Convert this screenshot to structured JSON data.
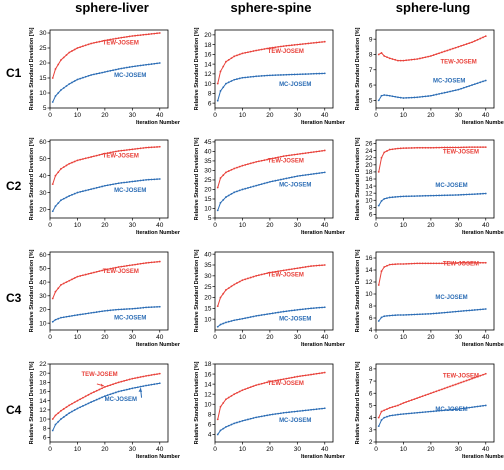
{
  "column_titles": [
    "sphere-liver",
    "sphere-spine",
    "sphere-lung"
  ],
  "row_labels": [
    "C1",
    "C2",
    "C3",
    "C4"
  ],
  "colors": {
    "tew": "#e8413a",
    "mc": "#2c6db5"
  },
  "chart_data": [
    {
      "type": "line",
      "row": "C1",
      "column": "sphere-liver",
      "xlabel": "Iteration Number",
      "ylabel": "Relative Standard Deviation [%]",
      "xlim": [
        0,
        43
      ],
      "ylim": [
        5,
        31
      ],
      "xticks": [
        0,
        10,
        20,
        30,
        40
      ],
      "yticks": [
        5,
        10,
        15,
        20,
        25,
        30
      ],
      "series": [
        {
          "name": "TEW-JOSEM",
          "x": [
            1,
            2,
            4,
            7,
            10,
            15,
            20,
            25,
            30,
            35,
            40
          ],
          "y": [
            15,
            18,
            21,
            23.5,
            25,
            26.5,
            27.5,
            28.3,
            29,
            29.5,
            30
          ]
        },
        {
          "name": "MC-JOSEM",
          "x": [
            1,
            2,
            4,
            7,
            10,
            15,
            20,
            25,
            30,
            35,
            40
          ],
          "y": [
            7,
            9,
            11,
            13,
            14.5,
            16,
            17,
            18,
            18.8,
            19.4,
            20
          ]
        }
      ]
    },
    {
      "type": "line",
      "row": "C1",
      "column": "sphere-spine",
      "xlabel": "Iteration Number",
      "ylabel": "Relative Standard Deviation [%]",
      "xlim": [
        0,
        43
      ],
      "ylim": [
        5,
        21
      ],
      "xticks": [
        0,
        10,
        20,
        30,
        40
      ],
      "yticks": [
        6,
        8,
        10,
        12,
        14,
        16,
        18,
        20
      ],
      "series": [
        {
          "name": "TEW-JOSEM",
          "x": [
            1,
            2,
            4,
            7,
            10,
            15,
            20,
            25,
            30,
            35,
            40
          ],
          "y": [
            10,
            12.5,
            14.5,
            15.6,
            16.2,
            16.8,
            17.3,
            17.7,
            18,
            18.3,
            18.6
          ]
        },
        {
          "name": "MC-JOSEM",
          "x": [
            1,
            2,
            4,
            7,
            10,
            15,
            20,
            25,
            30,
            35,
            40
          ],
          "y": [
            6.5,
            8.5,
            10,
            10.8,
            11.2,
            11.5,
            11.7,
            11.8,
            11.9,
            12,
            12.1
          ]
        }
      ]
    },
    {
      "type": "line",
      "row": "C1",
      "column": "sphere-lung",
      "xlabel": "Iteration Number",
      "ylabel": "Relative Standard Deviation [%]",
      "xlim": [
        0,
        43
      ],
      "ylim": [
        4.5,
        9.6
      ],
      "xticks": [
        0,
        10,
        20,
        30,
        40
      ],
      "yticks": [
        5,
        6,
        7,
        8,
        9
      ],
      "series": [
        {
          "name": "TEW-JOSEM",
          "x": [
            1,
            2,
            3,
            5,
            8,
            10,
            15,
            20,
            25,
            30,
            35,
            40
          ],
          "y": [
            8,
            8.1,
            7.9,
            7.75,
            7.6,
            7.6,
            7.7,
            7.9,
            8.2,
            8.5,
            8.8,
            9.2
          ]
        },
        {
          "name": "MC-JOSEM",
          "x": [
            1,
            2,
            3,
            5,
            8,
            10,
            15,
            20,
            25,
            30,
            35,
            40
          ],
          "y": [
            5,
            5.3,
            5.35,
            5.3,
            5.2,
            5.15,
            5.2,
            5.3,
            5.5,
            5.7,
            6,
            6.3
          ]
        }
      ]
    },
    {
      "type": "line",
      "row": "C2",
      "column": "sphere-liver",
      "xlabel": "Iteration Number",
      "ylabel": "Relative Standard Deviation [%]",
      "xlim": [
        0,
        43
      ],
      "ylim": [
        15,
        61
      ],
      "xticks": [
        0,
        10,
        20,
        30,
        40
      ],
      "yticks": [
        20,
        30,
        40,
        50,
        60
      ],
      "series": [
        {
          "name": "TEW-JOSEM",
          "x": [
            1,
            2,
            4,
            7,
            10,
            15,
            20,
            25,
            30,
            35,
            40
          ],
          "y": [
            35,
            40,
            44,
            47,
            49,
            51,
            53,
            54.5,
            55.5,
            56.5,
            57
          ]
        },
        {
          "name": "MC-JOSEM",
          "x": [
            1,
            2,
            4,
            7,
            10,
            15,
            20,
            25,
            30,
            35,
            40
          ],
          "y": [
            19,
            22,
            25.5,
            28,
            30,
            32,
            34,
            35.5,
            36.5,
            37.5,
            38
          ]
        }
      ]
    },
    {
      "type": "line",
      "row": "C2",
      "column": "sphere-spine",
      "xlabel": "Iteration Number",
      "ylabel": "Relative Standard Deviation [%]",
      "xlim": [
        0,
        43
      ],
      "ylim": [
        5,
        46
      ],
      "xticks": [
        0,
        10,
        20,
        30,
        40
      ],
      "yticks": [
        5,
        10,
        15,
        20,
        25,
        30,
        35,
        40,
        45
      ],
      "series": [
        {
          "name": "TEW-JOSEM",
          "x": [
            1,
            2,
            4,
            7,
            10,
            15,
            20,
            25,
            30,
            35,
            40
          ],
          "y": [
            21,
            26,
            29,
            31,
            32.5,
            34.5,
            36,
            37.5,
            38.5,
            39.5,
            40.5
          ]
        },
        {
          "name": "MC-JOSEM",
          "x": [
            1,
            2,
            4,
            7,
            10,
            15,
            20,
            25,
            30,
            35,
            40
          ],
          "y": [
            9,
            13,
            16,
            18.5,
            20,
            22,
            24,
            25.5,
            27,
            28,
            29
          ]
        }
      ]
    },
    {
      "type": "line",
      "row": "C2",
      "column": "sphere-lung",
      "xlabel": "Iteration Number",
      "ylabel": "Relative Standard Deviation [%]",
      "xlim": [
        0,
        43
      ],
      "ylim": [
        5,
        27
      ],
      "xticks": [
        0,
        10,
        20,
        30,
        40
      ],
      "yticks": [
        6,
        8,
        10,
        12,
        14,
        16,
        18,
        20,
        22,
        24,
        26
      ],
      "series": [
        {
          "name": "TEW-JOSEM",
          "x": [
            1,
            2,
            3,
            5,
            8,
            10,
            15,
            20,
            25,
            30,
            35,
            40
          ],
          "y": [
            18,
            22,
            23.5,
            24.3,
            24.6,
            24.7,
            24.8,
            24.8,
            24.9,
            24.9,
            25,
            25
          ]
        },
        {
          "name": "MC-JOSEM",
          "x": [
            1,
            2,
            3,
            5,
            8,
            10,
            15,
            20,
            25,
            30,
            35,
            40
          ],
          "y": [
            8.5,
            9.8,
            10.4,
            10.8,
            11,
            11.1,
            11.2,
            11.3,
            11.4,
            11.5,
            11.7,
            11.9
          ]
        }
      ]
    },
    {
      "type": "line",
      "row": "C3",
      "column": "sphere-liver",
      "xlabel": "Iteration Number",
      "ylabel": "Relative Standard Deviation [%]",
      "xlim": [
        0,
        43
      ],
      "ylim": [
        5,
        62
      ],
      "xticks": [
        0,
        10,
        20,
        30,
        40
      ],
      "yticks": [
        10,
        20,
        30,
        40,
        50,
        60
      ],
      "series": [
        {
          "name": "TEW-JOSEM",
          "x": [
            1,
            2,
            4,
            7,
            10,
            15,
            20,
            25,
            30,
            35,
            40
          ],
          "y": [
            28,
            33,
            38,
            41,
            44,
            46.5,
            49,
            51,
            52.5,
            54,
            55
          ]
        },
        {
          "name": "MC-JOSEM",
          "x": [
            1,
            2,
            4,
            7,
            10,
            15,
            20,
            25,
            30,
            35,
            40
          ],
          "y": [
            11,
            12.5,
            14,
            15,
            16,
            17.5,
            19,
            20,
            20.5,
            21.5,
            22
          ]
        }
      ]
    },
    {
      "type": "line",
      "row": "C3",
      "column": "sphere-spine",
      "xlabel": "Iteration Number",
      "ylabel": "Relative Standard Deviation [%]",
      "xlim": [
        0,
        43
      ],
      "ylim": [
        5,
        41
      ],
      "xticks": [
        0,
        10,
        20,
        30,
        40
      ],
      "yticks": [
        10,
        15,
        20,
        25,
        30,
        35,
        40
      ],
      "series": [
        {
          "name": "TEW-JOSEM",
          "x": [
            1,
            2,
            4,
            7,
            10,
            15,
            20,
            25,
            30,
            35,
            40
          ],
          "y": [
            16,
            20,
            23.5,
            26,
            28,
            30,
            31.5,
            32.5,
            33.5,
            34.5,
            35
          ]
        },
        {
          "name": "MC-JOSEM",
          "x": [
            1,
            2,
            4,
            7,
            10,
            15,
            20,
            25,
            30,
            35,
            40
          ],
          "y": [
            6.5,
            7.5,
            8.5,
            9.5,
            10.2,
            11.5,
            12.5,
            13.5,
            14.3,
            15,
            15.5
          ]
        }
      ]
    },
    {
      "type": "line",
      "row": "C3",
      "column": "sphere-lung",
      "xlabel": "Iteration Number",
      "ylabel": "Relative Standard Deviation [%]",
      "xlim": [
        0,
        43
      ],
      "ylim": [
        4,
        17
      ],
      "xticks": [
        0,
        10,
        20,
        30,
        40
      ],
      "yticks": [
        4,
        6,
        8,
        10,
        12,
        14,
        16
      ],
      "series": [
        {
          "name": "TEW-JOSEM",
          "x": [
            1,
            2,
            3,
            5,
            8,
            10,
            15,
            20,
            25,
            30,
            35,
            40
          ],
          "y": [
            11.5,
            13.8,
            14.5,
            14.9,
            15,
            15,
            15.1,
            15.1,
            15.1,
            15.2,
            15.2,
            15.2
          ]
        },
        {
          "name": "MC-JOSEM",
          "x": [
            1,
            2,
            3,
            5,
            8,
            10,
            15,
            20,
            25,
            30,
            35,
            40
          ],
          "y": [
            5.5,
            6.1,
            6.3,
            6.4,
            6.5,
            6.5,
            6.6,
            6.7,
            6.9,
            7.1,
            7.3,
            7.5
          ]
        }
      ]
    },
    {
      "type": "line",
      "row": "C4",
      "column": "sphere-liver",
      "xlabel": "Iteration Number",
      "ylabel": "Relative Standard Deviation [%]",
      "xlim": [
        0,
        43
      ],
      "ylim": [
        5,
        22
      ],
      "xticks": [
        0,
        10,
        20,
        30,
        40
      ],
      "yticks": [
        6,
        8,
        10,
        12,
        14,
        16,
        18,
        20,
        22
      ],
      "series": [
        {
          "name": "TEW-JOSEM",
          "x": [
            1,
            2,
            4,
            7,
            10,
            15,
            20,
            25,
            30,
            35,
            40
          ],
          "y": [
            10,
            10.8,
            11.8,
            13,
            14,
            15.6,
            17,
            18,
            18.8,
            19.4,
            19.9
          ]
        },
        {
          "name": "MC-JOSEM",
          "x": [
            1,
            2,
            4,
            7,
            10,
            15,
            20,
            25,
            30,
            35,
            40
          ],
          "y": [
            7.5,
            8.8,
            10,
            11.3,
            12.3,
            13.7,
            15,
            16,
            16.7,
            17.3,
            17.8
          ]
        }
      ]
    },
    {
      "type": "line",
      "row": "C4",
      "column": "sphere-spine",
      "xlabel": "Iteration Number",
      "ylabel": "Relative Standard Deviation [%]",
      "xlim": [
        0,
        43
      ],
      "ylim": [
        2.5,
        18
      ],
      "xticks": [
        0,
        10,
        20,
        30,
        40
      ],
      "yticks": [
        4,
        6,
        8,
        10,
        12,
        14,
        16,
        18
      ],
      "series": [
        {
          "name": "TEW-JOSEM",
          "x": [
            1,
            2,
            4,
            7,
            10,
            15,
            20,
            25,
            30,
            35,
            40
          ],
          "y": [
            7,
            9.5,
            11,
            12,
            12.8,
            13.8,
            14.5,
            15,
            15.5,
            15.9,
            16.3
          ]
        },
        {
          "name": "MC-JOSEM",
          "x": [
            1,
            2,
            4,
            7,
            10,
            15,
            20,
            25,
            30,
            35,
            40
          ],
          "y": [
            4,
            4.8,
            5.5,
            6.2,
            6.7,
            7.4,
            7.9,
            8.3,
            8.6,
            8.9,
            9.2
          ]
        }
      ]
    },
    {
      "type": "line",
      "row": "C4",
      "column": "sphere-lung",
      "xlabel": "Iteration Number",
      "ylabel": "Relative Standard Deviation [%]",
      "xlim": [
        0,
        43
      ],
      "ylim": [
        2,
        8.4
      ],
      "xticks": [
        0,
        10,
        20,
        30,
        40
      ],
      "yticks": [
        2,
        3,
        4,
        5,
        6,
        7,
        8
      ],
      "series": [
        {
          "name": "TEW-JOSEM",
          "x": [
            1,
            2,
            3,
            5,
            8,
            10,
            15,
            20,
            25,
            30,
            35,
            40
          ],
          "y": [
            4,
            4.5,
            4.6,
            4.8,
            5,
            5.2,
            5.6,
            6,
            6.4,
            6.8,
            7.2,
            7.6
          ]
        },
        {
          "name": "MC-JOSEM",
          "x": [
            1,
            2,
            3,
            5,
            8,
            10,
            15,
            20,
            25,
            30,
            35,
            40
          ],
          "y": [
            3.3,
            3.8,
            4,
            4.15,
            4.25,
            4.3,
            4.4,
            4.5,
            4.6,
            4.7,
            4.85,
            5
          ]
        }
      ]
    }
  ]
}
